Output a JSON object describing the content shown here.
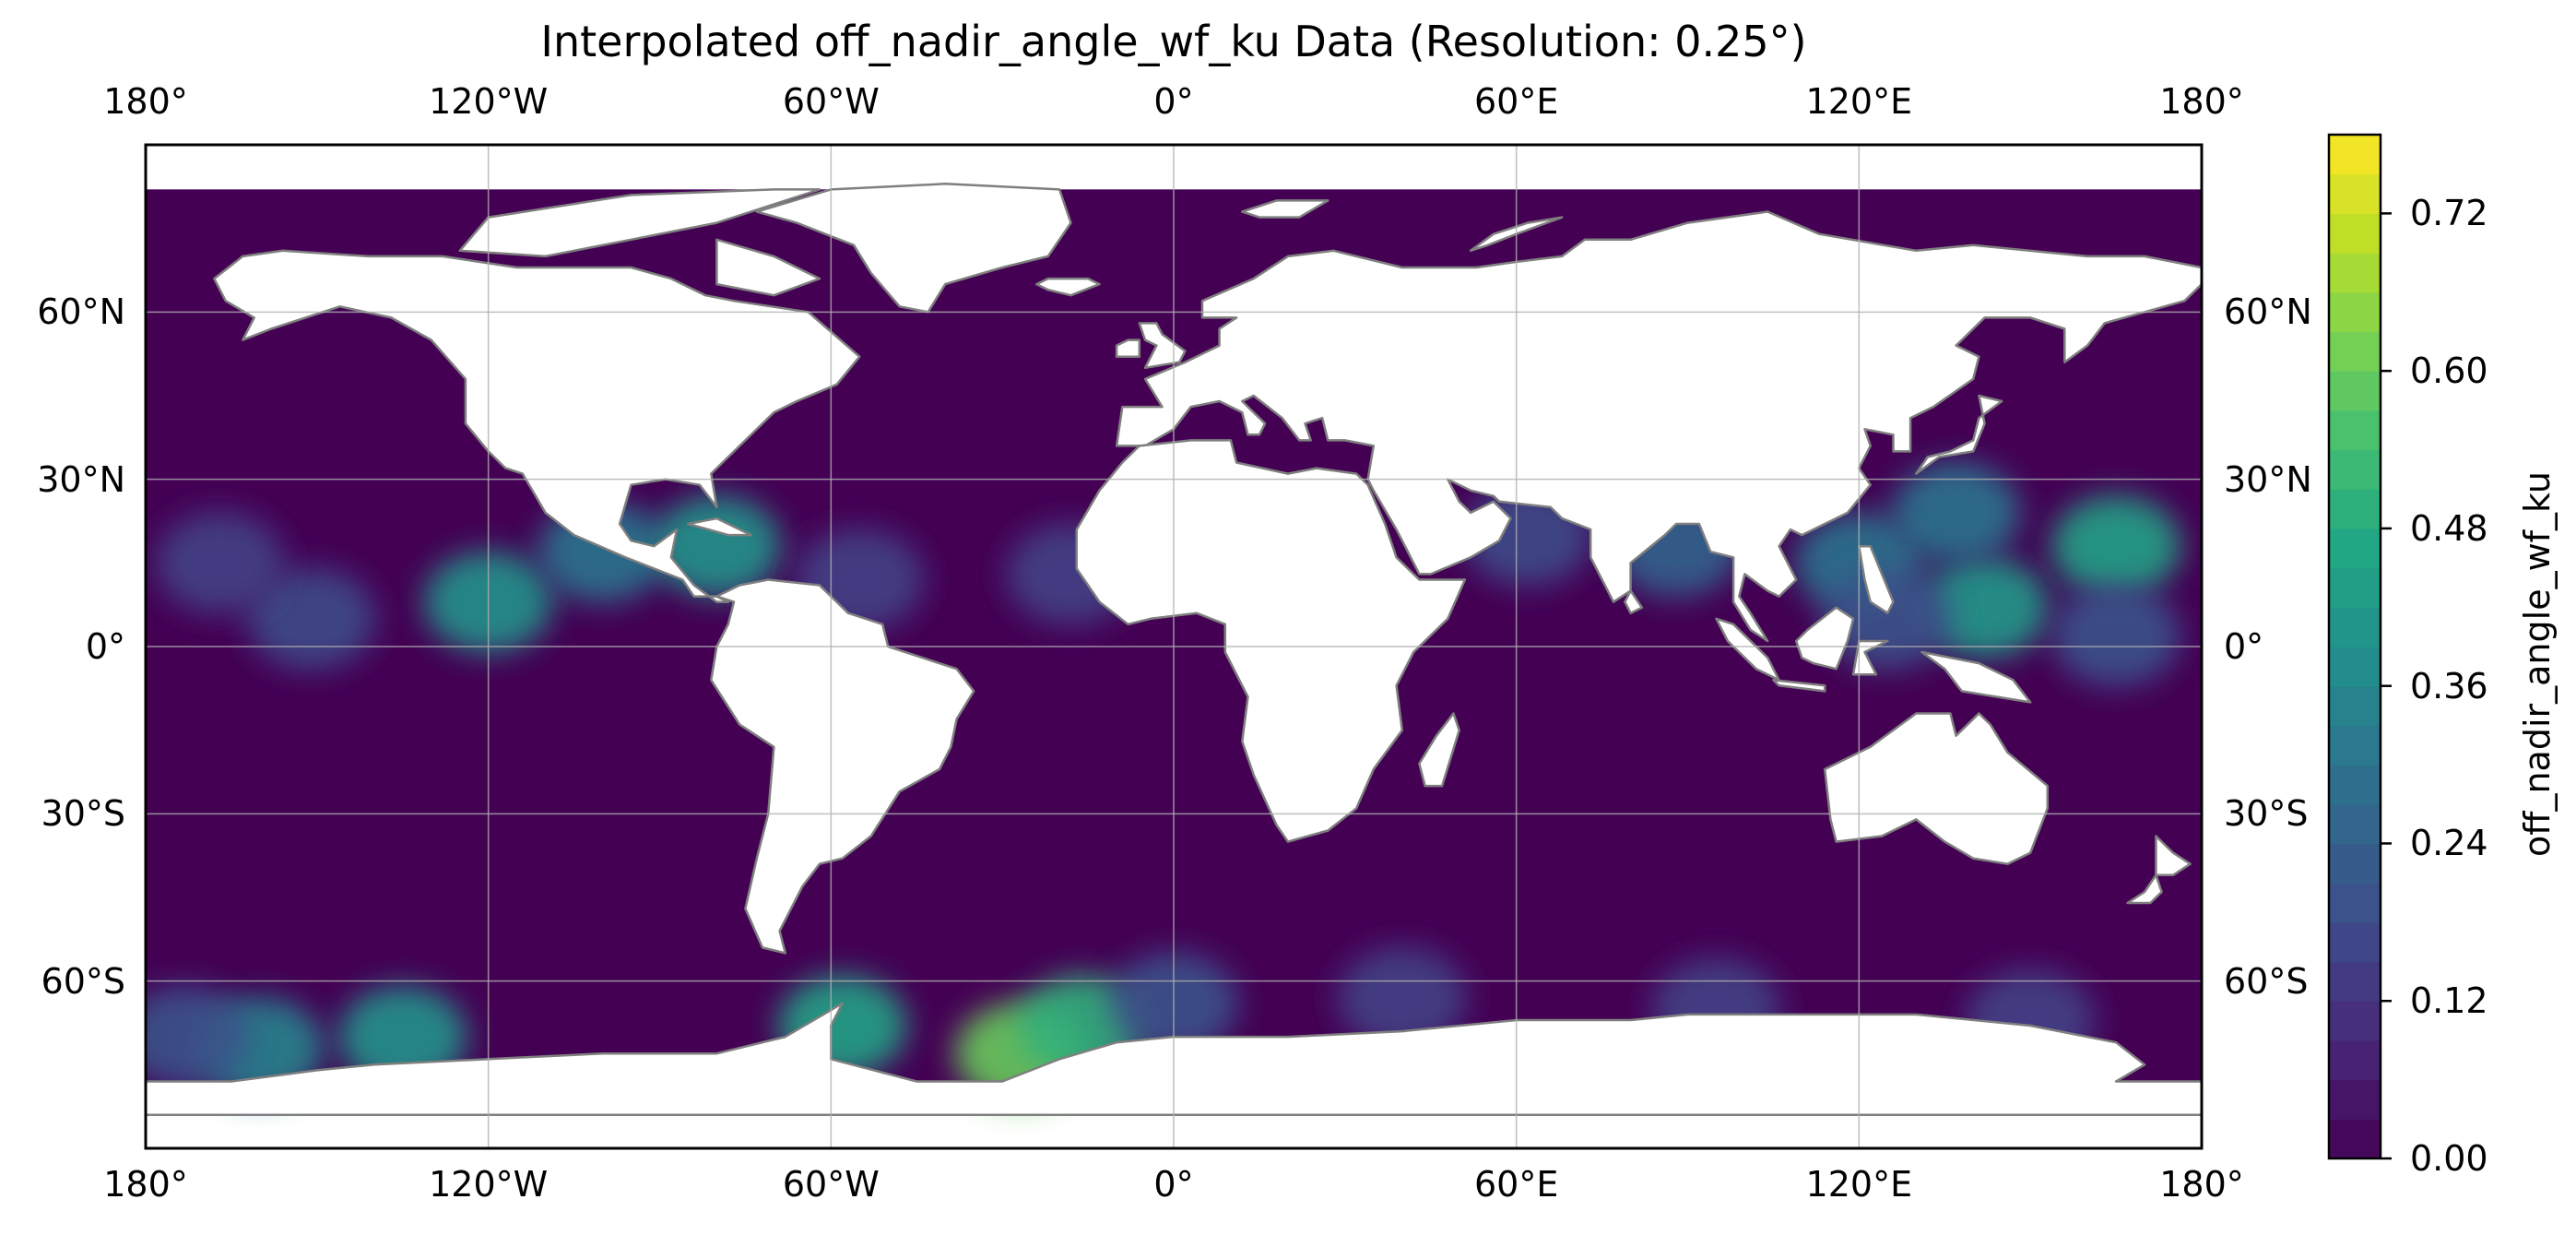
{
  "chart_data": {
    "type": "heatmap",
    "title": "Interpolated off_nadir_angle_wf_ku Data (Resolution: 0.25°)",
    "projection": "PlateCarree",
    "xlim": [
      -180,
      180
    ],
    "ylim": [
      -90,
      90
    ],
    "data_lat_extent": [
      -78,
      82
    ],
    "x_ticks": [
      {
        "value": -180,
        "label": "180°"
      },
      {
        "value": -120,
        "label": "120°W"
      },
      {
        "value": -60,
        "label": "60°W"
      },
      {
        "value": 0,
        "label": "0°"
      },
      {
        "value": 60,
        "label": "60°E"
      },
      {
        "value": 120,
        "label": "120°E"
      },
      {
        "value": 180,
        "label": "180°"
      }
    ],
    "y_ticks": [
      {
        "value": 60,
        "label": "60°N"
      },
      {
        "value": 30,
        "label": "30°N"
      },
      {
        "value": 0,
        "label": "0°"
      },
      {
        "value": -30,
        "label": "30°S"
      },
      {
        "value": -60,
        "label": "60°S"
      }
    ],
    "grid": true,
    "background_value": 0.0,
    "hotspots": [
      {
        "lon": 165,
        "lat": 18,
        "value": 0.45
      },
      {
        "lon": 142,
        "lat": 7,
        "value": 0.42
      },
      {
        "lon": 137,
        "lat": 24,
        "value": 0.3
      },
      {
        "lon": 165,
        "lat": 2,
        "value": 0.2
      },
      {
        "lon": 120,
        "lat": 15,
        "value": 0.3
      },
      {
        "lon": 125,
        "lat": 5,
        "value": 0.2
      },
      {
        "lon": 88,
        "lat": 18,
        "value": 0.25
      },
      {
        "lon": 62,
        "lat": 20,
        "value": 0.18
      },
      {
        "lon": -151,
        "lat": 5,
        "value": 0.18
      },
      {
        "lon": -167,
        "lat": 15,
        "value": 0.15
      },
      {
        "lon": -120,
        "lat": 8,
        "value": 0.4
      },
      {
        "lon": -100,
        "lat": 17,
        "value": 0.3
      },
      {
        "lon": -80,
        "lat": 18,
        "value": 0.4
      },
      {
        "lon": -55,
        "lat": 12,
        "value": 0.15
      },
      {
        "lon": -18,
        "lat": 13,
        "value": 0.15
      },
      {
        "lon": -27,
        "lat": -73,
        "value": 0.6
      },
      {
        "lon": -16,
        "lat": -68,
        "value": 0.5
      },
      {
        "lon": -58,
        "lat": -68,
        "value": 0.45
      },
      {
        "lon": -135,
        "lat": -70,
        "value": 0.4
      },
      {
        "lon": -160,
        "lat": -72,
        "value": 0.35
      },
      {
        "lon": -173,
        "lat": -70,
        "value": 0.2
      },
      {
        "lon": 0,
        "lat": -64,
        "value": 0.2
      },
      {
        "lon": 40,
        "lat": -63,
        "value": 0.15
      },
      {
        "lon": 95,
        "lat": -65,
        "value": 0.15
      },
      {
        "lon": 150,
        "lat": -67,
        "value": 0.15
      }
    ],
    "colorbar": {
      "label": "off_nadir_angle_wf_ku",
      "colormap": "viridis",
      "range": [
        0,
        0.78
      ],
      "levels": 26,
      "ticks": [
        "0.00",
        "0.12",
        "0.24",
        "0.36",
        "0.48",
        "0.60",
        "0.72"
      ]
    },
    "colors": {
      "ocean_base": "#440154",
      "land": "#ffffff",
      "coastline": "#7f7f7f",
      "gridline": "#b0b0b0"
    }
  }
}
